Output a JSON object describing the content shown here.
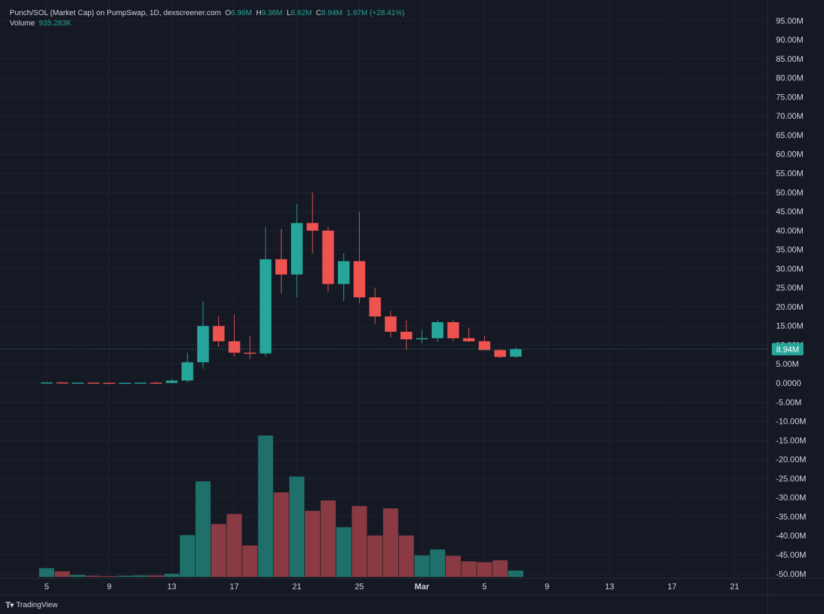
{
  "legend": {
    "symbol": "Punch/SOL (Market Cap) on PumpSwap, 1D, dexscreener.com",
    "open_label": "O",
    "open": "6.96M",
    "high_label": "H",
    "high": "9.36M",
    "low_label": "L",
    "low": "6.62M",
    "close_label": "C",
    "close": "8.94M",
    "change": "1.97M (+28.41%)",
    "volume_label": "Volume",
    "volume": "935.283K"
  },
  "price_tag": "8.94M",
  "brand": "TradingView",
  "colors": {
    "background": "#151924",
    "up": "#26a69a",
    "down": "#ef5350",
    "up_volume": "#1f6f6a",
    "down_volume": "#8a3a42",
    "grid": "#1f2430",
    "text": "#d1d4dc"
  },
  "chart_data": {
    "type": "candlestick",
    "interval": "1D",
    "y_axis": {
      "ticks": [
        "95.00M",
        "90.00M",
        "85.00M",
        "80.00M",
        "75.00M",
        "70.00M",
        "65.00M",
        "60.00M",
        "55.00M",
        "50.00M",
        "45.00M",
        "40.00M",
        "35.00M",
        "30.00M",
        "25.00M",
        "20.00M",
        "15.00M",
        "10.00M",
        "5.00M",
        "0.0000",
        "-5.00M",
        "-10.00M",
        "-15.00M",
        "-20.00M",
        "-25.00M",
        "-30.00M",
        "-35.00M",
        "-40.00M",
        "-45.00M",
        "-50.00M"
      ],
      "values": [
        95,
        90,
        85,
        80,
        75,
        70,
        65,
        60,
        55,
        50,
        45,
        40,
        35,
        30,
        25,
        20,
        15,
        10,
        5,
        0,
        -5,
        -10,
        -15,
        -20,
        -25,
        -30,
        -35,
        -40,
        -45,
        -50
      ],
      "range": [
        -50,
        97
      ],
      "unit": "M"
    },
    "x_axis": {
      "tick_labels": [
        "5",
        "9",
        "13",
        "17",
        "21",
        "25",
        "Mar",
        "5",
        "9",
        "13",
        "17",
        "21"
      ],
      "tick_days": [
        0,
        4,
        8,
        12,
        16,
        20,
        24,
        28,
        32,
        36,
        40,
        44
      ]
    },
    "current_price": 8.94,
    "candles": [
      {
        "day": 0,
        "o": 0.1,
        "h": 0.3,
        "l": 0.0,
        "c": 0.2
      },
      {
        "day": 1,
        "o": 0.2,
        "h": 0.4,
        "l": 0.0,
        "c": 0.1
      },
      {
        "day": 2,
        "o": 0.1,
        "h": 0.2,
        "l": 0.0,
        "c": 0.15
      },
      {
        "day": 3,
        "o": 0.15,
        "h": 0.2,
        "l": 0.0,
        "c": 0.1
      },
      {
        "day": 4,
        "o": 0.1,
        "h": 0.15,
        "l": -0.1,
        "c": 0.0
      },
      {
        "day": 5,
        "o": 0.0,
        "h": 0.15,
        "l": -0.1,
        "c": 0.1
      },
      {
        "day": 6,
        "o": 0.1,
        "h": 0.2,
        "l": 0.0,
        "c": 0.15
      },
      {
        "day": 7,
        "o": 0.15,
        "h": 0.3,
        "l": 0.0,
        "c": 0.1
      },
      {
        "day": 8,
        "o": 0.1,
        "h": 1.2,
        "l": 0.0,
        "c": 0.7
      },
      {
        "day": 9,
        "o": 0.7,
        "h": 8.0,
        "l": 0.2,
        "c": 5.5
      },
      {
        "day": 10,
        "o": 5.5,
        "h": 21.5,
        "l": 3.8,
        "c": 15.0
      },
      {
        "day": 11,
        "o": 15.0,
        "h": 17.5,
        "l": 9.5,
        "c": 11.0
      },
      {
        "day": 12,
        "o": 11.0,
        "h": 18.0,
        "l": 7.0,
        "c": 8.0
      },
      {
        "day": 13,
        "o": 8.0,
        "h": 12.5,
        "l": 6.3,
        "c": 7.8
      },
      {
        "day": 14,
        "o": 7.8,
        "h": 41.0,
        "l": 7.0,
        "c": 32.5
      },
      {
        "day": 15,
        "o": 32.5,
        "h": 40.5,
        "l": 23.5,
        "c": 28.5
      },
      {
        "day": 16,
        "o": 28.5,
        "h": 47.0,
        "l": 22.5,
        "c": 42.0
      },
      {
        "day": 17,
        "o": 42.0,
        "h": 50.0,
        "l": 34.0,
        "c": 40.0
      },
      {
        "day": 18,
        "o": 40.0,
        "h": 41.0,
        "l": 24.0,
        "c": 26.0
      },
      {
        "day": 19,
        "o": 26.0,
        "h": 34.0,
        "l": 21.5,
        "c": 32.0
      },
      {
        "day": 20,
        "o": 32.0,
        "h": 45.0,
        "l": 21.0,
        "c": 22.5
      },
      {
        "day": 21,
        "o": 22.5,
        "h": 25.0,
        "l": 15.5,
        "c": 17.5
      },
      {
        "day": 22,
        "o": 17.5,
        "h": 19.0,
        "l": 12.0,
        "c": 13.5
      },
      {
        "day": 23,
        "o": 13.5,
        "h": 16.5,
        "l": 8.8,
        "c": 11.5
      },
      {
        "day": 24,
        "o": 11.5,
        "h": 14.0,
        "l": 10.5,
        "c": 11.8
      },
      {
        "day": 25,
        "o": 11.8,
        "h": 16.5,
        "l": 10.8,
        "c": 16.0
      },
      {
        "day": 26,
        "o": 16.0,
        "h": 16.5,
        "l": 11.0,
        "c": 11.8
      },
      {
        "day": 27,
        "o": 11.8,
        "h": 14.5,
        "l": 10.8,
        "c": 11.0
      },
      {
        "day": 28,
        "o": 11.0,
        "h": 12.5,
        "l": 8.8,
        "c": 8.7
      },
      {
        "day": 29,
        "o": 8.7,
        "h": 9.0,
        "l": 6.6,
        "c": 6.9
      },
      {
        "day": 30,
        "o": 6.96,
        "h": 9.36,
        "l": 6.62,
        "c": 8.94
      }
    ],
    "volume": {
      "unit": "relative",
      "bars": [
        {
          "day": 0,
          "v": 2.2
        },
        {
          "day": 1,
          "v": 1.4
        },
        {
          "day": 2,
          "v": 0.5
        },
        {
          "day": 3,
          "v": 0.3
        },
        {
          "day": 4,
          "v": 0.2
        },
        {
          "day": 5,
          "v": 0.3
        },
        {
          "day": 6,
          "v": 0.4
        },
        {
          "day": 7,
          "v": 0.4
        },
        {
          "day": 8,
          "v": 0.8
        },
        {
          "day": 9,
          "v": 10.5
        },
        {
          "day": 10,
          "v": 24.0
        },
        {
          "day": 11,
          "v": 13.3
        },
        {
          "day": 12,
          "v": 15.8
        },
        {
          "day": 13,
          "v": 7.9
        },
        {
          "day": 14,
          "v": 35.5
        },
        {
          "day": 15,
          "v": 21.2
        },
        {
          "day": 16,
          "v": 25.2
        },
        {
          "day": 17,
          "v": 16.6
        },
        {
          "day": 18,
          "v": 19.2
        },
        {
          "day": 19,
          "v": 12.5
        },
        {
          "day": 20,
          "v": 17.8
        },
        {
          "day": 21,
          "v": 10.4
        },
        {
          "day": 22,
          "v": 17.2
        },
        {
          "day": 23,
          "v": 10.4
        },
        {
          "day": 24,
          "v": 5.4
        },
        {
          "day": 25,
          "v": 6.9
        },
        {
          "day": 26,
          "v": 5.3
        },
        {
          "day": 27,
          "v": 3.9
        },
        {
          "day": 28,
          "v": 3.7
        },
        {
          "day": 29,
          "v": 4.2
        },
        {
          "day": 30,
          "v": 1.6
        }
      ]
    }
  }
}
